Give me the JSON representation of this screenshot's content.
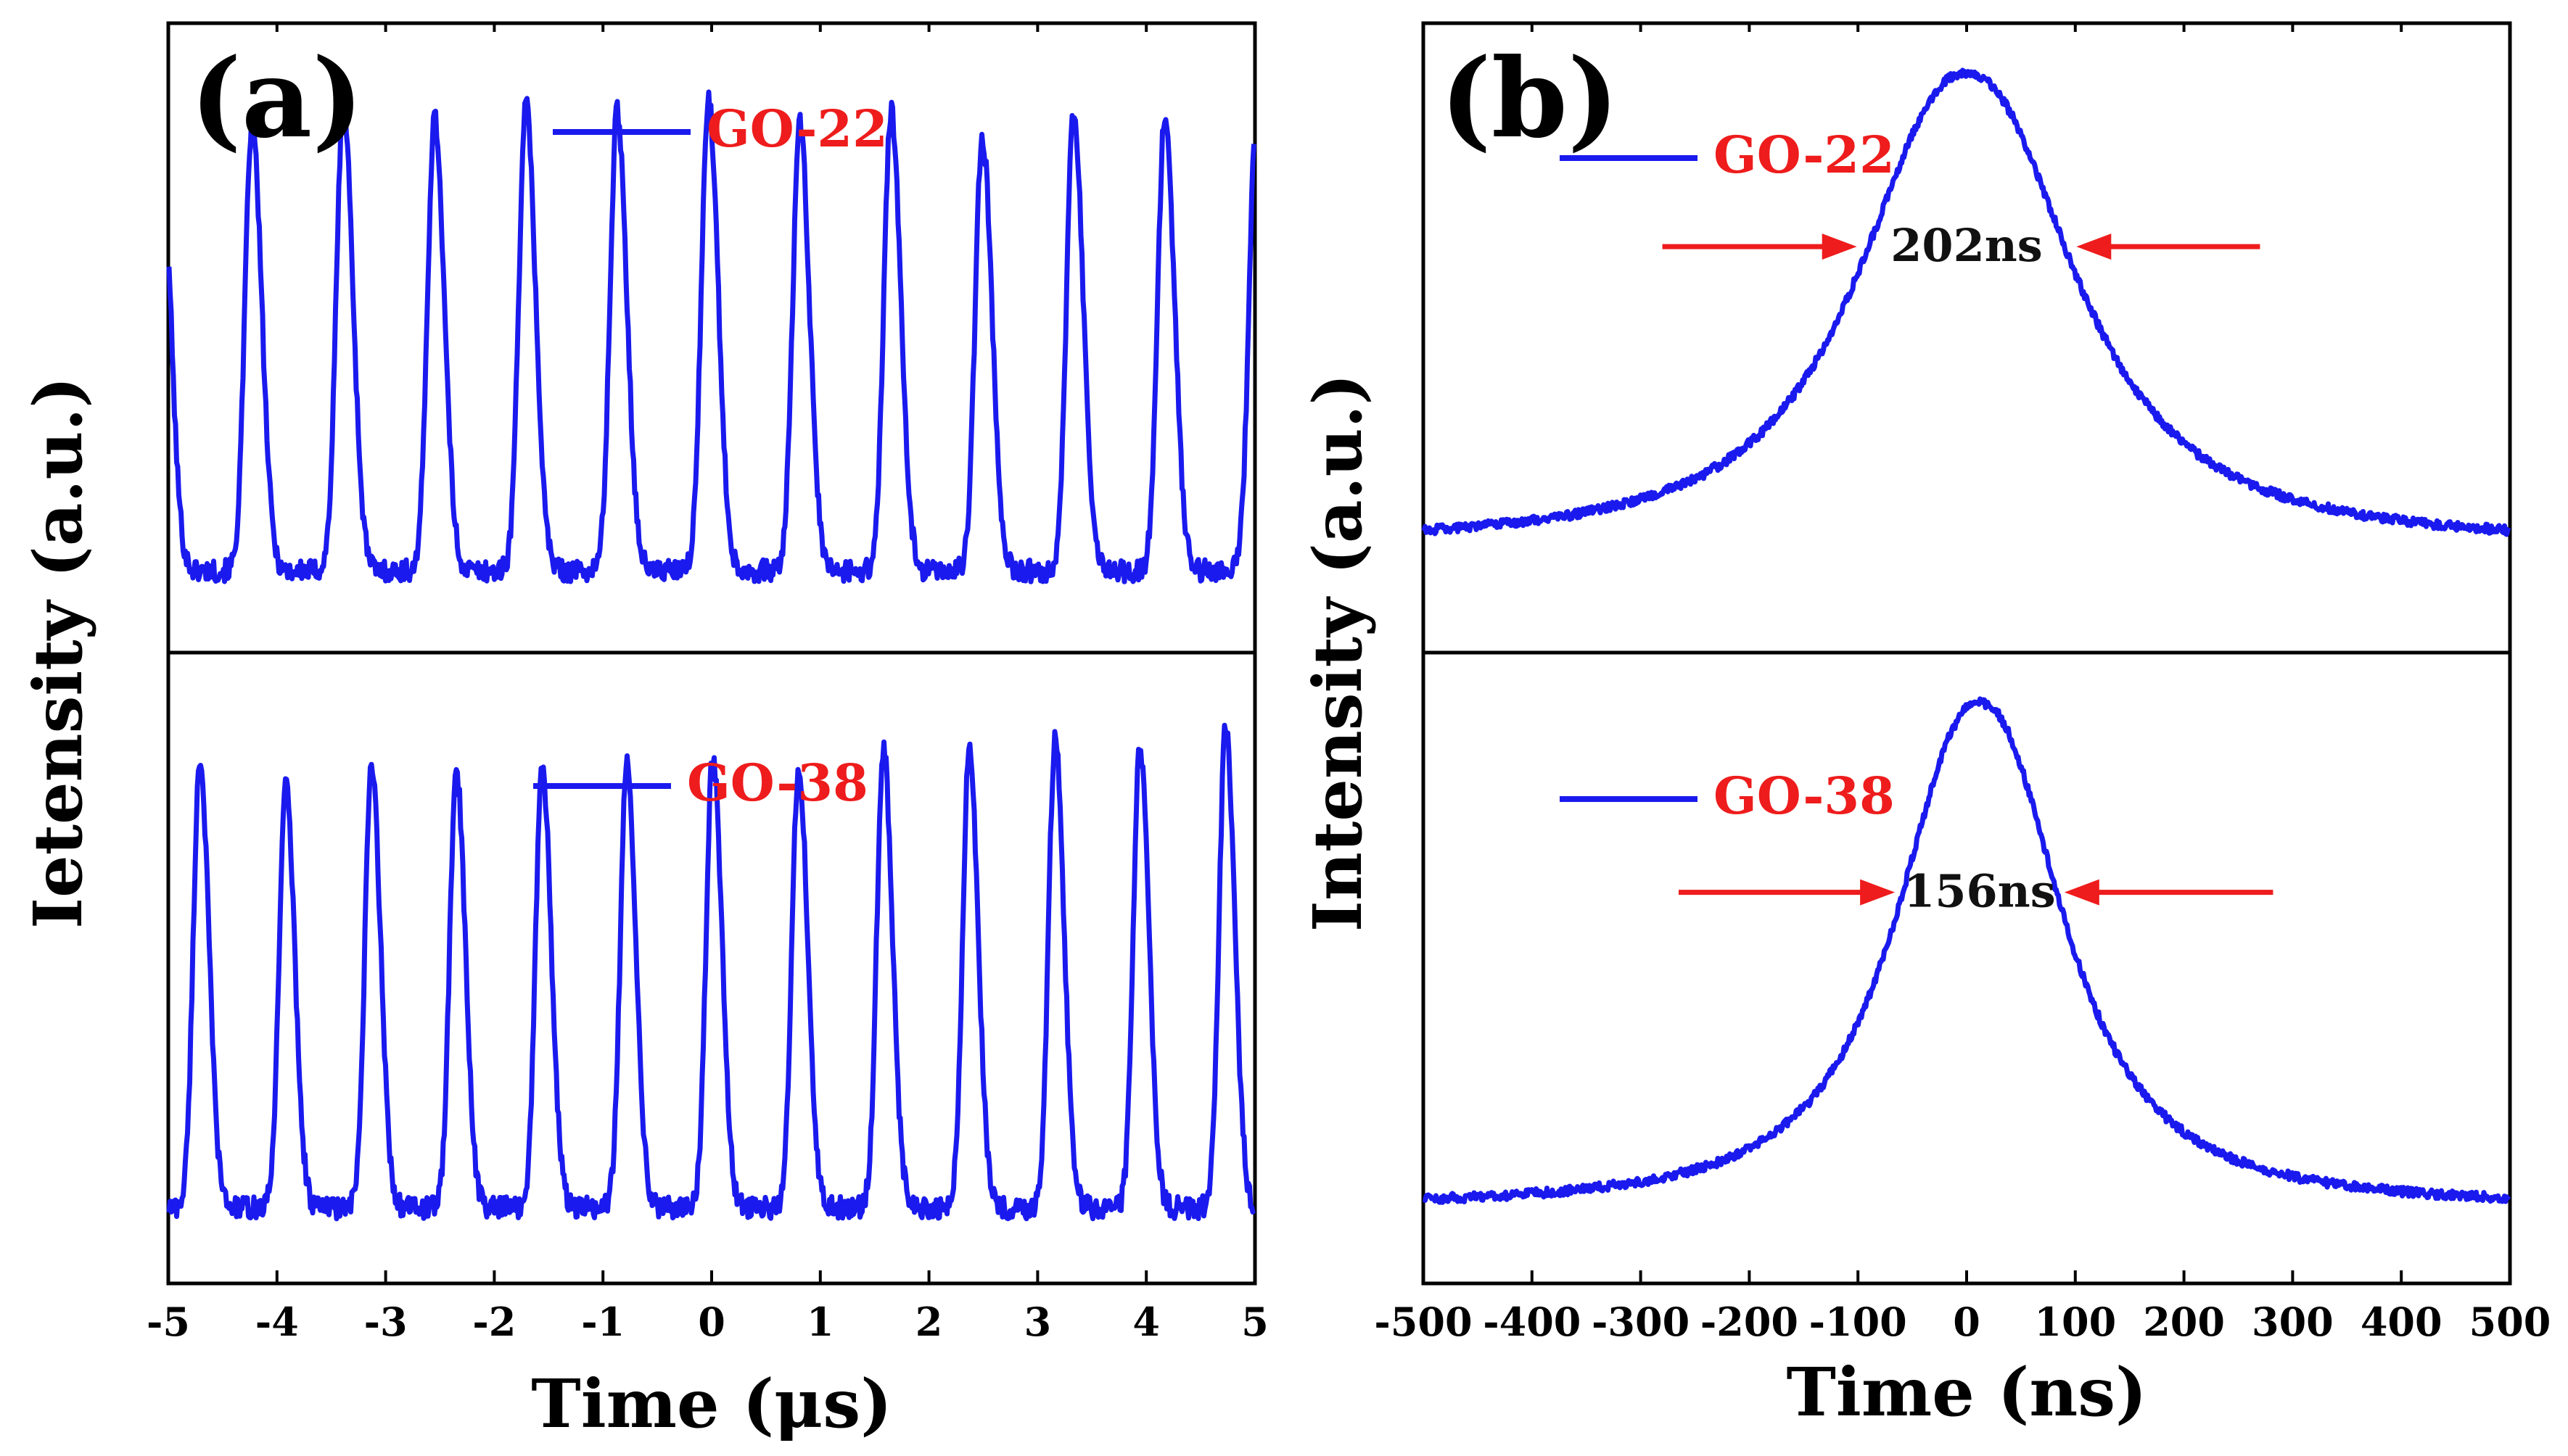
{
  "colors": {
    "trace": "#1a1aee",
    "legend_text": "#ee1c1c",
    "arrow": "#ee1c1c",
    "axes": "#000000"
  },
  "ylabel_a": "Ietensity (a.u.)",
  "ylabel_b": "Intensity (a.u.)",
  "chart_data": [
    {
      "panel": "a",
      "type": "line",
      "label": "(a)",
      "xlabel": "Time (μs)",
      "ylabel": "Ietensity (a.u.)",
      "xlim": [
        -5,
        5
      ],
      "xticks": [
        -5,
        -4,
        -3,
        -2,
        -1,
        0,
        1,
        2,
        3,
        4,
        5
      ],
      "xtick_labels": [
        "-5",
        "-4",
        "-3",
        "-2",
        "-1",
        "0",
        "1",
        "2",
        "3",
        "4",
        "5"
      ],
      "ylim": [
        0,
        1
      ],
      "y_ticks_shown": false,
      "series": [
        {
          "name": "GO-22",
          "subplot": "top",
          "period_us": 0.84,
          "peak_times_us": [
            -4.23,
            -3.39,
            -2.55,
            -1.71,
            -0.87,
            -0.03,
            0.81,
            1.65,
            2.49,
            3.33,
            4.17
          ],
          "peak_heights": [
            0.84,
            0.87,
            0.85,
            0.87,
            0.86,
            0.88,
            0.84,
            0.86,
            0.82,
            0.85,
            0.85
          ],
          "baseline": 0.13
        },
        {
          "name": "GO-38",
          "subplot": "bottom",
          "period_us": 0.787,
          "peak_times_us": [
            -4.71,
            -3.92,
            -3.13,
            -2.35,
            -1.56,
            -0.78,
            0.01,
            0.8,
            1.58,
            2.37,
            3.16,
            3.94,
            4.73
          ],
          "peak_heights": [
            0.83,
            0.79,
            0.82,
            0.81,
            0.82,
            0.82,
            0.84,
            0.82,
            0.85,
            0.84,
            0.86,
            0.85,
            0.88
          ],
          "baseline": 0.12
        }
      ]
    },
    {
      "panel": "b",
      "type": "line",
      "label": "(b)",
      "xlabel": "Time (ns)",
      "ylabel": "Intensity (a.u.)",
      "xlim": [
        -500,
        500
      ],
      "xticks": [
        -500,
        -400,
        -300,
        -200,
        -100,
        0,
        100,
        200,
        300,
        400,
        500
      ],
      "xtick_labels": [
        "-500",
        "-400",
        "-300",
        "-200",
        "-100",
        "0",
        "100",
        "200",
        "300",
        "400",
        "500"
      ],
      "ylim": [
        0,
        1
      ],
      "y_ticks_shown": false,
      "series": [
        {
          "name": "GO-22",
          "subplot": "top",
          "center_ns": 0,
          "fwhm_ns": 202,
          "peak": 0.92,
          "baseline": 0.17
        },
        {
          "name": "GO-38",
          "subplot": "bottom",
          "center_ns": 12,
          "fwhm_ns": 156,
          "peak": 0.92,
          "baseline": 0.12
        }
      ],
      "annotations": [
        {
          "subplot": "top",
          "text": "202ns",
          "arrow_left_ns": [
            -280,
            -101
          ],
          "arrow_right_ns": [
            101,
            270
          ]
        },
        {
          "subplot": "bottom",
          "text": "156ns",
          "arrow_left_ns": [
            -265,
            -66
          ],
          "arrow_right_ns": [
            90,
            282
          ]
        }
      ]
    }
  ]
}
